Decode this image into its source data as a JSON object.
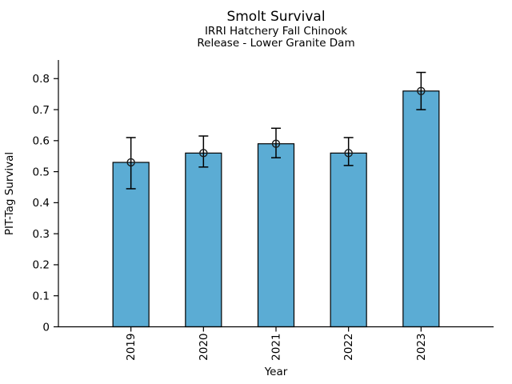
{
  "title": "Smolt Survival",
  "subtitle_line1": "IRRI Hatchery Fall Chinook",
  "subtitle_line2": "Release - Lower Granite Dam",
  "chart_data": {
    "type": "bar",
    "title": "Smolt Survival",
    "subtitle": [
      "IRRI Hatchery Fall Chinook",
      "Release - Lower Granite Dam"
    ],
    "xlabel": "Year",
    "ylabel": "PIT-Tag Survival",
    "categories": [
      "2019",
      "2020",
      "2021",
      "2022",
      "2023"
    ],
    "series": [
      {
        "name": "PIT-Tag Survival",
        "values": [
          0.53,
          0.56,
          0.59,
          0.56,
          0.76
        ],
        "error_low": [
          0.445,
          0.515,
          0.545,
          0.52,
          0.7
        ],
        "error_high": [
          0.61,
          0.615,
          0.64,
          0.61,
          0.82
        ]
      }
    ],
    "ylim": [
      0,
      0.86
    ],
    "yticks": [
      0,
      0.1,
      0.2,
      0.3,
      0.4,
      0.5,
      0.6,
      0.7,
      0.8
    ],
    "xtick_rotation": 90,
    "grid": false,
    "legend": false,
    "spines": [
      "left",
      "bottom"
    ],
    "bar_color": "#5BACD4",
    "bar_edge_color": "#000000",
    "error_color": "#000000",
    "marker": "open-circle",
    "marker_edge_color": "#1a1a1a",
    "background_color": "#ffffff"
  }
}
